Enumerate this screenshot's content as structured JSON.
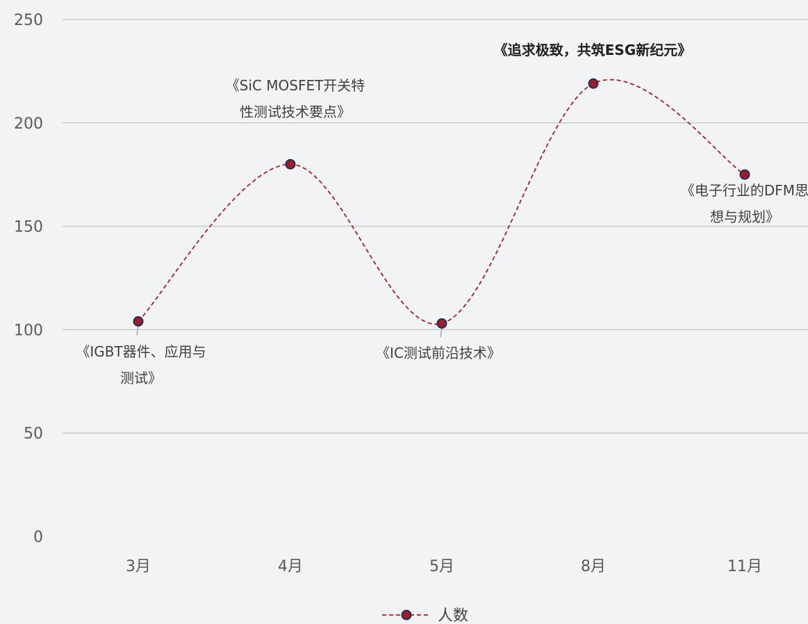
{
  "chart_data": {
    "type": "line",
    "categories": [
      "3月",
      "4月",
      "5月",
      "8月",
      "11月"
    ],
    "series": [
      {
        "name": "人数",
        "values": [
          104,
          180,
          103,
          219,
          175
        ],
        "color": "#a01c2a",
        "marker_fill": "#a01c2a",
        "marker_edge": "#1f2f5a",
        "line_style": "dashed",
        "smooth": true
      }
    ],
    "yticks": [
      0,
      50,
      100,
      150,
      200,
      250
    ],
    "ylim": [
      0,
      250
    ],
    "grid": true,
    "legend": "bottom",
    "annotations": [
      {
        "category": "3月",
        "lines": [
          "《IGBT器件、应用与",
          "测试》"
        ],
        "bold": false
      },
      {
        "category": "4月",
        "lines": [
          "《SiC MOSFET开关特",
          "性测试技术要点》"
        ],
        "bold": false
      },
      {
        "category": "5月",
        "lines": [
          "《IC测试前沿技术》"
        ],
        "bold": false
      },
      {
        "category": "8月",
        "lines": [
          "《追求极致，共筑ESG新纪元》"
        ],
        "bold": true
      },
      {
        "category": "11月",
        "lines": [
          "《电子行业的DFM思",
          "想与规划》"
        ],
        "bold": false
      }
    ],
    "title": "",
    "xlabel": "",
    "ylabel": ""
  },
  "colors": {
    "background": "#f2f3f5",
    "grid": "#c9c9c9",
    "tick_text": "#595959",
    "leader": "#a6a6a6"
  }
}
